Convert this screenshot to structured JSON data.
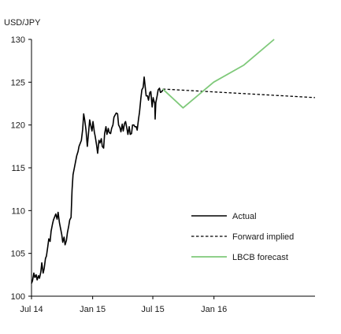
{
  "chart_data": {
    "type": "line",
    "ylabel": "USD/JPY",
    "ylim": [
      100,
      130
    ],
    "yticks": [
      100,
      105,
      110,
      115,
      120,
      125,
      130
    ],
    "xlim": [
      "2014-07-01",
      "2016-10-31"
    ],
    "xticks": [
      {
        "date": "2014-07-01",
        "label": "Jul 14"
      },
      {
        "date": "2015-01-01",
        "label": "Jan 15"
      },
      {
        "date": "2015-07-01",
        "label": "Jul 15"
      },
      {
        "date": "2016-01-01",
        "label": "Jan 16"
      }
    ],
    "grid": false,
    "legend_position": "lower-right",
    "series": [
      {
        "name": "Actual",
        "style": "solid",
        "color": "#000000",
        "points": [
          [
            "2014-07-01",
            101.5
          ],
          [
            "2014-07-04",
            101.8
          ],
          [
            "2014-07-08",
            102.7
          ],
          [
            "2014-07-11",
            102.2
          ],
          [
            "2014-07-15",
            102.5
          ],
          [
            "2014-07-18",
            101.9
          ],
          [
            "2014-07-22",
            102.4
          ],
          [
            "2014-07-25",
            102.1
          ],
          [
            "2014-07-29",
            102.8
          ],
          [
            "2014-08-01",
            103.9
          ],
          [
            "2014-08-05",
            102.7
          ],
          [
            "2014-08-08",
            103.2
          ],
          [
            "2014-08-12",
            104.4
          ],
          [
            "2014-08-15",
            104.7
          ],
          [
            "2014-08-19",
            105.8
          ],
          [
            "2014-08-22",
            106.7
          ],
          [
            "2014-08-26",
            106.4
          ],
          [
            "2014-08-29",
            107.6
          ],
          [
            "2014-09-02",
            108.4
          ],
          [
            "2014-09-05",
            108.9
          ],
          [
            "2014-09-09",
            109.3
          ],
          [
            "2014-09-12",
            109.6
          ],
          [
            "2014-09-16",
            109.0
          ],
          [
            "2014-09-19",
            109.8
          ],
          [
            "2014-09-23",
            108.6
          ],
          [
            "2014-09-26",
            108.0
          ],
          [
            "2014-09-30",
            107.2
          ],
          [
            "2014-10-03",
            106.3
          ],
          [
            "2014-10-07",
            106.9
          ],
          [
            "2014-10-10",
            106.0
          ],
          [
            "2014-10-14",
            106.5
          ],
          [
            "2014-10-17",
            107.4
          ],
          [
            "2014-10-21",
            108.2
          ],
          [
            "2014-10-24",
            108.9
          ],
          [
            "2014-10-28",
            109.2
          ],
          [
            "2014-10-31",
            112.4
          ],
          [
            "2014-11-03",
            114.2
          ],
          [
            "2014-11-07",
            115.0
          ],
          [
            "2014-11-11",
            115.8
          ],
          [
            "2014-11-14",
            116.4
          ],
          [
            "2014-11-18",
            116.9
          ],
          [
            "2014-11-21",
            117.5
          ],
          [
            "2014-11-25",
            117.9
          ],
          [
            "2014-11-28",
            118.2
          ],
          [
            "2014-12-02",
            119.5
          ],
          [
            "2014-12-05",
            121.3
          ],
          [
            "2014-12-08",
            120.6
          ],
          [
            "2014-12-12",
            119.4
          ],
          [
            "2014-12-16",
            117.5
          ],
          [
            "2014-12-19",
            118.8
          ],
          [
            "2014-12-23",
            120.6
          ],
          [
            "2014-12-26",
            120.0
          ],
          [
            "2014-12-30",
            119.3
          ],
          [
            "2015-01-02",
            120.4
          ],
          [
            "2015-01-06",
            119.2
          ],
          [
            "2015-01-09",
            118.6
          ],
          [
            "2015-01-13",
            117.6
          ],
          [
            "2015-01-16",
            116.7
          ],
          [
            "2015-01-20",
            118.2
          ],
          [
            "2015-01-23",
            117.9
          ],
          [
            "2015-01-27",
            118.4
          ],
          [
            "2015-01-30",
            117.5
          ],
          [
            "2015-02-03",
            117.3
          ],
          [
            "2015-02-06",
            119.0
          ],
          [
            "2015-02-10",
            119.8
          ],
          [
            "2015-02-13",
            118.9
          ],
          [
            "2015-02-17",
            119.6
          ],
          [
            "2015-02-20",
            119.1
          ],
          [
            "2015-02-24",
            119.0
          ],
          [
            "2015-02-27",
            119.6
          ],
          [
            "2015-03-03",
            120.0
          ],
          [
            "2015-03-06",
            120.9
          ],
          [
            "2015-03-10",
            121.2
          ],
          [
            "2015-03-13",
            121.4
          ],
          [
            "2015-03-17",
            121.3
          ],
          [
            "2015-03-20",
            120.0
          ],
          [
            "2015-03-24",
            119.7
          ],
          [
            "2015-03-27",
            119.2
          ],
          [
            "2015-03-31",
            120.1
          ],
          [
            "2015-04-03",
            119.3
          ],
          [
            "2015-04-07",
            120.2
          ],
          [
            "2015-04-10",
            120.4
          ],
          [
            "2015-04-14",
            119.6
          ],
          [
            "2015-04-17",
            118.9
          ],
          [
            "2015-04-21",
            119.8
          ],
          [
            "2015-04-24",
            118.9
          ],
          [
            "2015-04-28",
            119.0
          ],
          [
            "2015-05-01",
            120.0
          ],
          [
            "2015-05-05",
            120.0
          ],
          [
            "2015-05-08",
            119.8
          ],
          [
            "2015-05-12",
            119.8
          ],
          [
            "2015-05-15",
            119.4
          ],
          [
            "2015-05-19",
            120.7
          ],
          [
            "2015-05-22",
            121.5
          ],
          [
            "2015-05-26",
            123.1
          ],
          [
            "2015-05-29",
            124.1
          ],
          [
            "2015-06-02",
            124.4
          ],
          [
            "2015-06-05",
            125.6
          ],
          [
            "2015-06-08",
            124.5
          ],
          [
            "2015-06-11",
            123.4
          ],
          [
            "2015-06-15",
            123.4
          ],
          [
            "2015-06-18",
            122.9
          ],
          [
            "2015-06-22",
            123.8
          ],
          [
            "2015-06-25",
            123.9
          ],
          [
            "2015-06-29",
            122.1
          ],
          [
            "2015-07-02",
            123.2
          ],
          [
            "2015-07-03",
            123.0
          ],
          [
            "2015-07-07",
            122.5
          ],
          [
            "2015-07-08",
            120.7
          ],
          [
            "2015-07-10",
            122.6
          ],
          [
            "2015-07-14",
            123.4
          ],
          [
            "2015-07-17",
            124.1
          ],
          [
            "2015-07-21",
            124.3
          ],
          [
            "2015-07-24",
            123.8
          ],
          [
            "2015-07-28",
            123.9
          ],
          [
            "2015-07-31",
            124.1
          ]
        ]
      },
      {
        "name": "Forward implied",
        "style": "dashed",
        "color": "#000000",
        "points": [
          [
            "2015-07-31",
            124.2
          ],
          [
            "2016-10-31",
            123.2
          ]
        ]
      },
      {
        "name": "LBCB forecast",
        "style": "solid",
        "color": "#7fc97a",
        "points": [
          [
            "2015-07-31",
            124.2
          ],
          [
            "2015-09-30",
            122.0
          ],
          [
            "2015-12-31",
            125.0
          ],
          [
            "2016-03-31",
            127.0
          ],
          [
            "2016-06-30",
            130.0
          ]
        ]
      }
    ]
  }
}
